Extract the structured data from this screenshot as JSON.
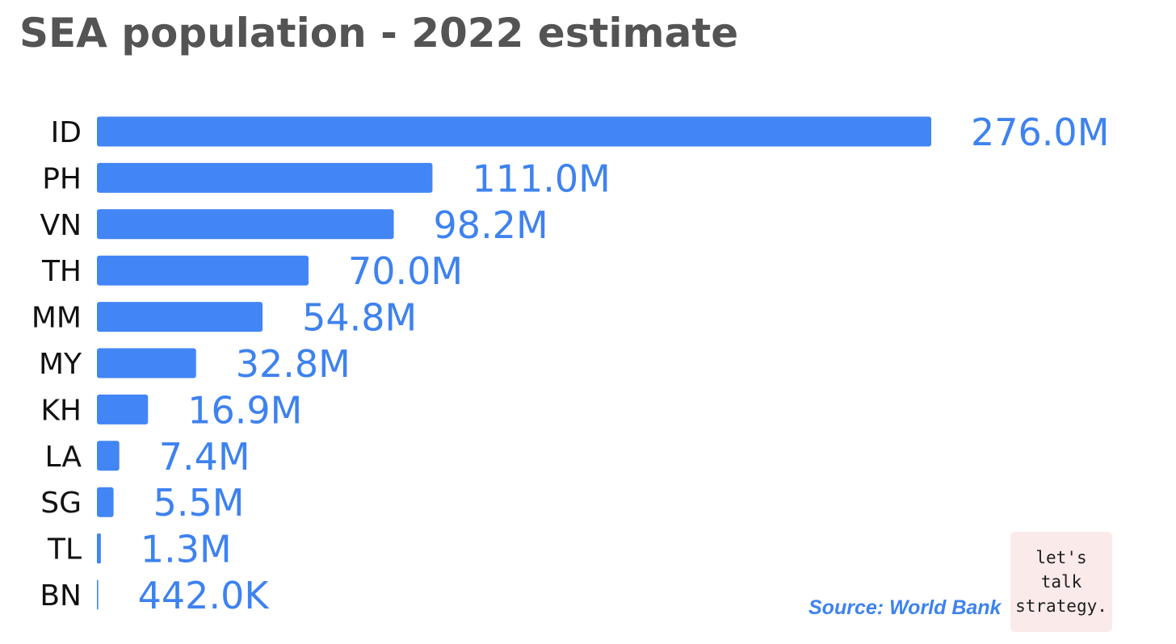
{
  "chart_data": {
    "type": "bar",
    "orientation": "horizontal",
    "title": "SEA population - 2022 estimate",
    "categories": [
      "ID",
      "PH",
      "VN",
      "TH",
      "MM",
      "MY",
      "KH",
      "LA",
      "SG",
      "TL",
      "BN"
    ],
    "values": [
      276.0,
      111.0,
      98.2,
      70.0,
      54.8,
      32.8,
      16.9,
      7.4,
      5.5,
      1.3,
      0.442
    ],
    "value_unit": "million",
    "data_labels": [
      "276.0M",
      "111.0M",
      "98.2M",
      "70.0M",
      "54.8M",
      "32.8M",
      "16.9M",
      "7.4M",
      "5.5M",
      "1.3M",
      "442.0K"
    ],
    "xlim": [
      0,
      276.0
    ],
    "grid": false,
    "legend": "none",
    "bar_color": "#4285f4",
    "label_color": "#3e82ef"
  },
  "source": "Source: World Bank",
  "logo": {
    "lines": [
      "let's",
      "talk",
      "strategy."
    ],
    "background": "#fbeaea"
  }
}
